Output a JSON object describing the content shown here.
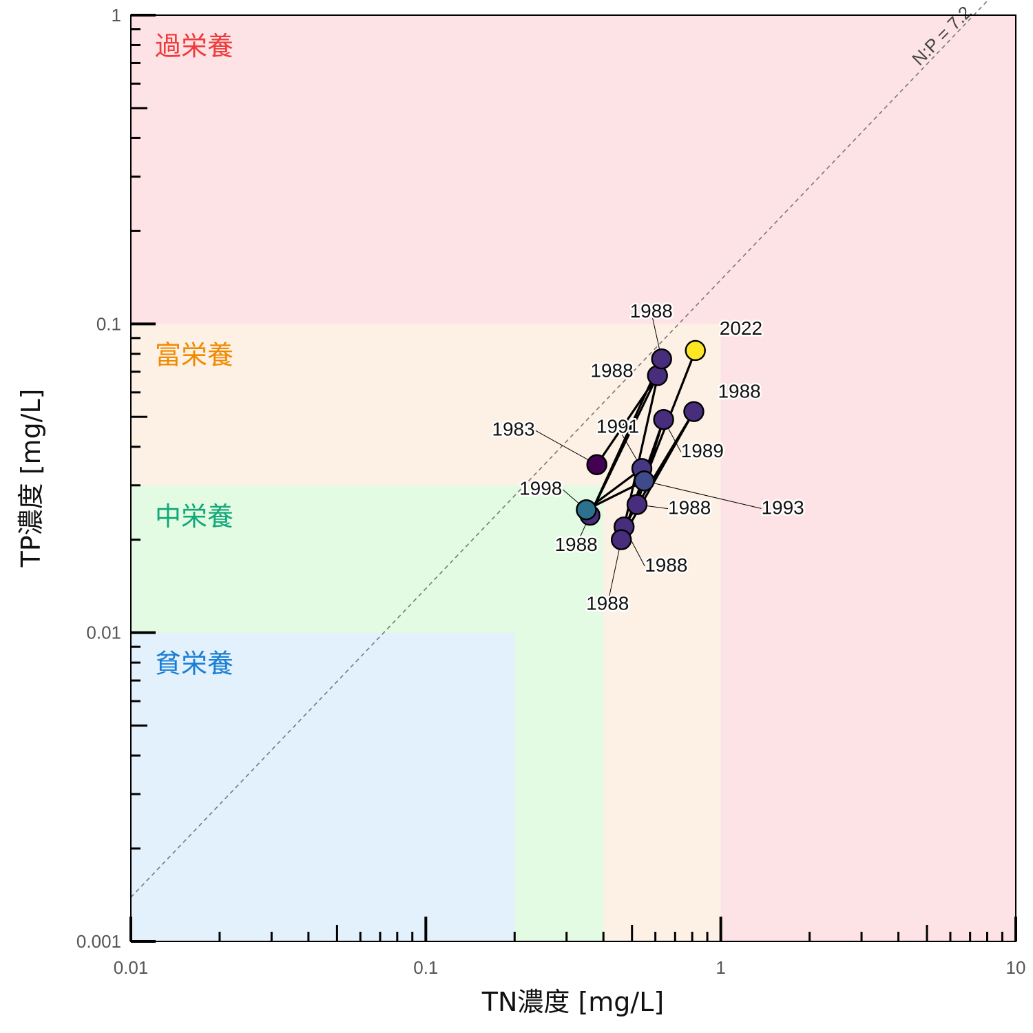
{
  "chart_data": {
    "type": "scatter",
    "xlabel": "TN濃度 [mg/L]",
    "ylabel": "TP濃度 [mg/L]",
    "x_scale": "log",
    "y_scale": "log",
    "xlim": [
      0.01,
      10
    ],
    "ylim": [
      0.001,
      1
    ],
    "x_ticks": [
      {
        "value": 0.01,
        "label": "0.01"
      },
      {
        "value": 0.1,
        "label": "0.1"
      },
      {
        "value": 1,
        "label": "1"
      },
      {
        "value": 10,
        "label": "10"
      }
    ],
    "y_ticks": [
      {
        "value": 0.001,
        "label": "0.001"
      },
      {
        "value": 0.01,
        "label": "0.01"
      },
      {
        "value": 0.1,
        "label": "0.1"
      },
      {
        "value": 1,
        "label": "1"
      }
    ],
    "grid": false,
    "zones": [
      {
        "label": "過栄養",
        "label_color": "#ef3b3b",
        "fill": "#fde3e5",
        "tn_max": 10,
        "tp_max": 1
      },
      {
        "label": "富栄養",
        "label_color": "#f08a00",
        "fill": "#fdf0e4",
        "tn_max": 1,
        "tp_max": 0.1
      },
      {
        "label": "中栄養",
        "label_color": "#12a87a",
        "fill": "#e3fbe2",
        "tn_max": 0.4,
        "tp_max": 0.03
      },
      {
        "label": "貧栄養",
        "label_color": "#1a7fd4",
        "fill": "#e3f1fc",
        "tn_max": 0.2,
        "tp_max": 0.01
      }
    ],
    "reference_line": {
      "label": "N:P = 7.2",
      "ratio": 7.2
    },
    "points": [
      {
        "tn": 0.38,
        "tp": 0.035,
        "year": "1983",
        "color": "#440154"
      },
      {
        "tn": 0.61,
        "tp": 0.068,
        "year": "1988",
        "color": "#472d7b"
      },
      {
        "tn": 0.63,
        "tp": 0.077,
        "year": "1988",
        "color": "#472d7b"
      },
      {
        "tn": 0.81,
        "tp": 0.052,
        "year": "1988",
        "color": "#472d7b"
      },
      {
        "tn": 0.64,
        "tp": 0.049,
        "year": "1989",
        "color": "#472d7b"
      },
      {
        "tn": 0.54,
        "tp": 0.034,
        "year": "1991",
        "color": "#453781"
      },
      {
        "tn": 0.55,
        "tp": 0.031,
        "year": "1993",
        "color": "#3f4a8a"
      },
      {
        "tn": 0.52,
        "tp": 0.026,
        "year": "1988",
        "color": "#472d7b"
      },
      {
        "tn": 0.36,
        "tp": 0.024,
        "year": "1988",
        "color": "#472d7b"
      },
      {
        "tn": 0.47,
        "tp": 0.022,
        "year": "1988",
        "color": "#472d7b"
      },
      {
        "tn": 0.46,
        "tp": 0.02,
        "year": "1988",
        "color": "#472d7b"
      },
      {
        "tn": 0.35,
        "tp": 0.025,
        "year": "1998",
        "color": "#2c728e"
      },
      {
        "tn": 0.82,
        "tp": 0.082,
        "year": "2022",
        "color": "#fde725"
      }
    ]
  }
}
